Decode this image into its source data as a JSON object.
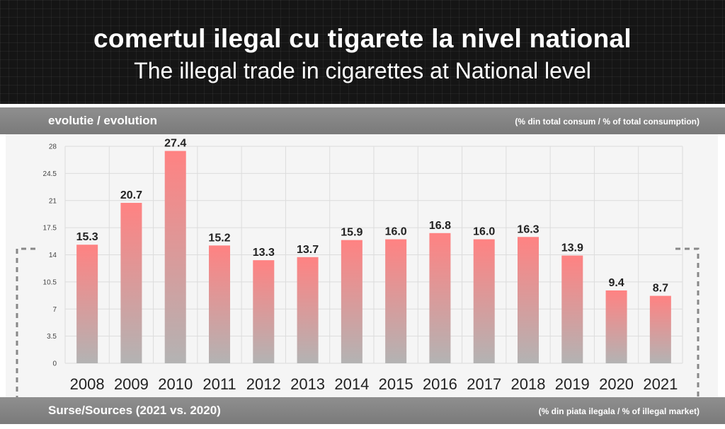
{
  "header": {
    "title_ro": "comertul ilegal cu tigarete la nivel national",
    "title_en": "The illegal trade in cigarettes at National level"
  },
  "top_band": {
    "left": "evolutie / evolution",
    "right": "(% din total consum / % of total consumption)"
  },
  "bottom_band": {
    "left": "Surse/Sources (2021 vs. 2020)",
    "right": "(% din piata ilegala / % of illegal market)"
  },
  "colors": {
    "bar_top": "#ff8282",
    "bar_bottom": "#b3b3b3",
    "header_bg": "#151515",
    "band_bg": "#858585"
  },
  "chart_data": {
    "type": "bar",
    "categories": [
      "2008",
      "2009",
      "2010",
      "2011",
      "2012",
      "2013",
      "2014",
      "2015",
      "2016",
      "2017",
      "2018",
      "2019",
      "2020",
      "2021"
    ],
    "values": [
      15.3,
      20.7,
      27.4,
      15.2,
      13.3,
      13.7,
      15.9,
      16.0,
      16.8,
      16.0,
      16.3,
      13.9,
      9.4,
      8.7
    ],
    "value_labels": [
      "15.3",
      "20.7",
      "27.4",
      "15.2",
      "13.3",
      "13.7",
      "15.9",
      "16.0",
      "16.8",
      "16.0",
      "16.3",
      "13.9",
      "9.4",
      "8.7"
    ],
    "yticks": [
      0,
      3.5,
      7,
      10.5,
      14,
      17.5,
      21,
      24.5,
      28
    ],
    "ytick_labels": [
      "0",
      "3.5",
      "7",
      "10.5",
      "14",
      "17.5",
      "21",
      "24.5",
      "28"
    ],
    "ylim": [
      0,
      28
    ],
    "grid": true,
    "title": "",
    "xlabel": "",
    "ylabel": ""
  }
}
